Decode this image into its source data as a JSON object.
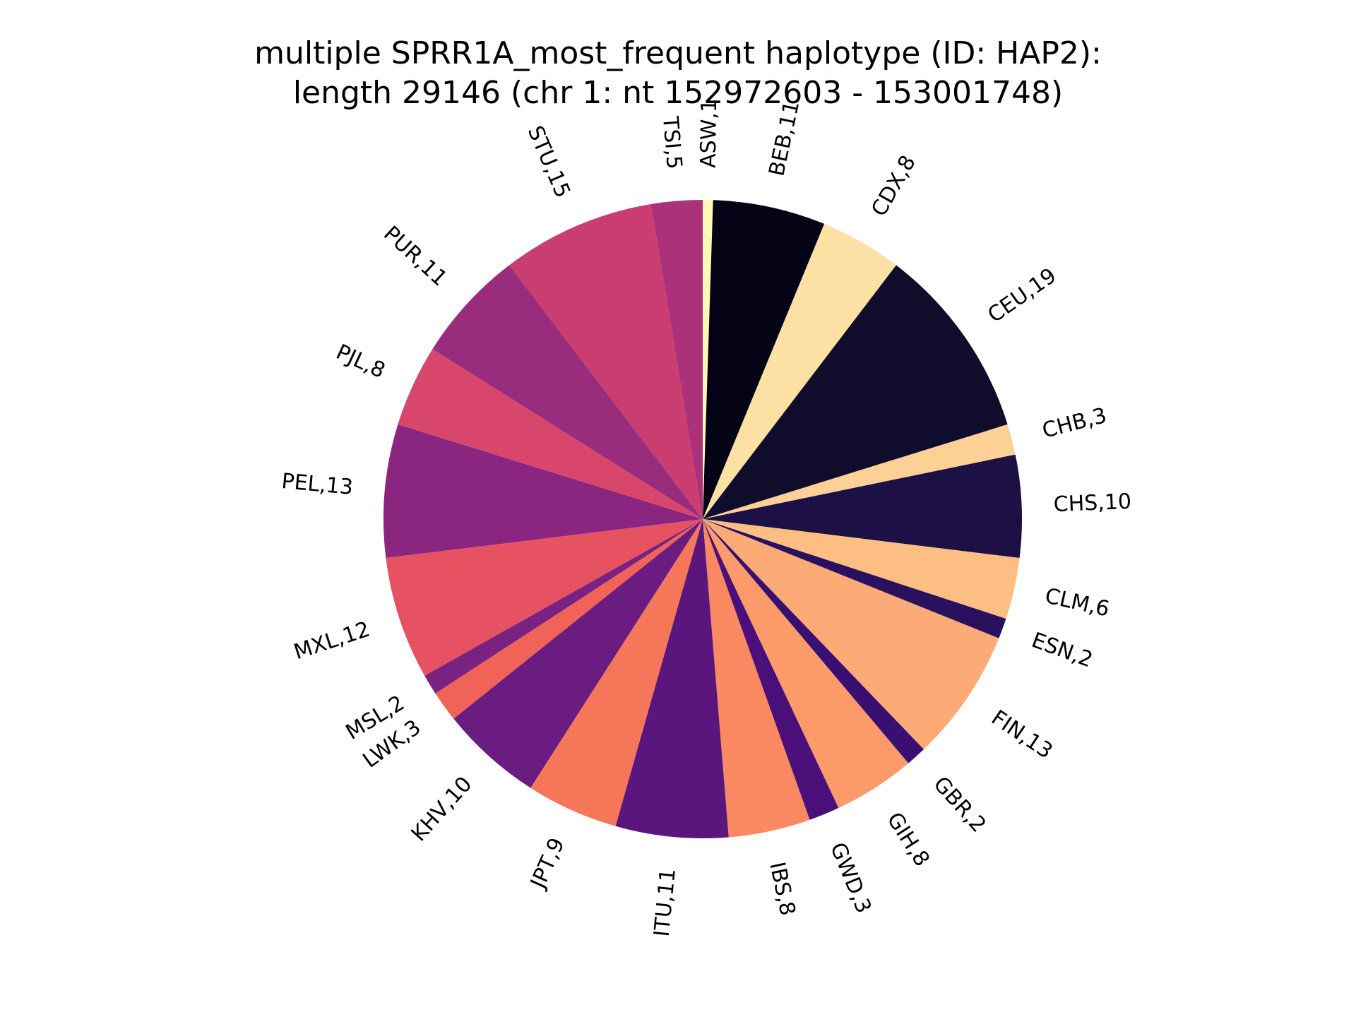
{
  "chart_data": {
    "type": "pie",
    "title": "multiple SPRR1A_most_frequent haplotype (ID: HAP2):",
    "subtitle": "length 29146 (chr 1: nt 152972603 - 153001748)",
    "start_angle_deg": 90,
    "direction": "clockwise",
    "legend": "none",
    "slices": [
      {
        "label": "ASW,1",
        "value": 1,
        "color": "#fcf9b7"
      },
      {
        "label": "BEB,11",
        "value": 11,
        "color": "#050417"
      },
      {
        "label": "CDX,8",
        "value": 8,
        "color": "#fce0a4"
      },
      {
        "label": "CEU,19",
        "value": 19,
        "color": "#0f0c2c"
      },
      {
        "label": "CHB,3",
        "value": 3,
        "color": "#fdd095"
      },
      {
        "label": "CHS,10",
        "value": 10,
        "color": "#1c1044"
      },
      {
        "label": "CLM,6",
        "value": 6,
        "color": "#fdbe84"
      },
      {
        "label": "ESN,2",
        "value": 2,
        "color": "#2a115e"
      },
      {
        "label": "FIN,13",
        "value": 13,
        "color": "#fdab76"
      },
      {
        "label": "GBR,2",
        "value": 2,
        "color": "#3a0f72"
      },
      {
        "label": "GIH,8",
        "value": 8,
        "color": "#fc9a6a"
      },
      {
        "label": "GWD,3",
        "value": 3,
        "color": "#4b0f7a"
      },
      {
        "label": "IBS,8",
        "value": 8,
        "color": "#fa8861"
      },
      {
        "label": "ITU,11",
        "value": 11,
        "color": "#5b167e"
      },
      {
        "label": "JPT,9",
        "value": 9,
        "color": "#f67659"
      },
      {
        "label": "KHV,10",
        "value": 10,
        "color": "#6a1c80"
      },
      {
        "label": "LWK,3",
        "value": 3,
        "color": "#f06356"
      },
      {
        "label": "MSL,2",
        "value": 2,
        "color": "#7a2280"
      },
      {
        "label": "MXL,12",
        "value": 12,
        "color": "#e75263"
      },
      {
        "label": "PEL,13",
        "value": 13,
        "color": "#8a2680"
      },
      {
        "label": "PJL,8",
        "value": 8,
        "color": "#d9466b"
      },
      {
        "label": "PUR,11",
        "value": 11,
        "color": "#9a2c7e"
      },
      {
        "label": "STU,15",
        "value": 15,
        "color": "#c93d70"
      },
      {
        "label": "TSI,5",
        "value": 5,
        "color": "#ab327a"
      }
    ]
  }
}
